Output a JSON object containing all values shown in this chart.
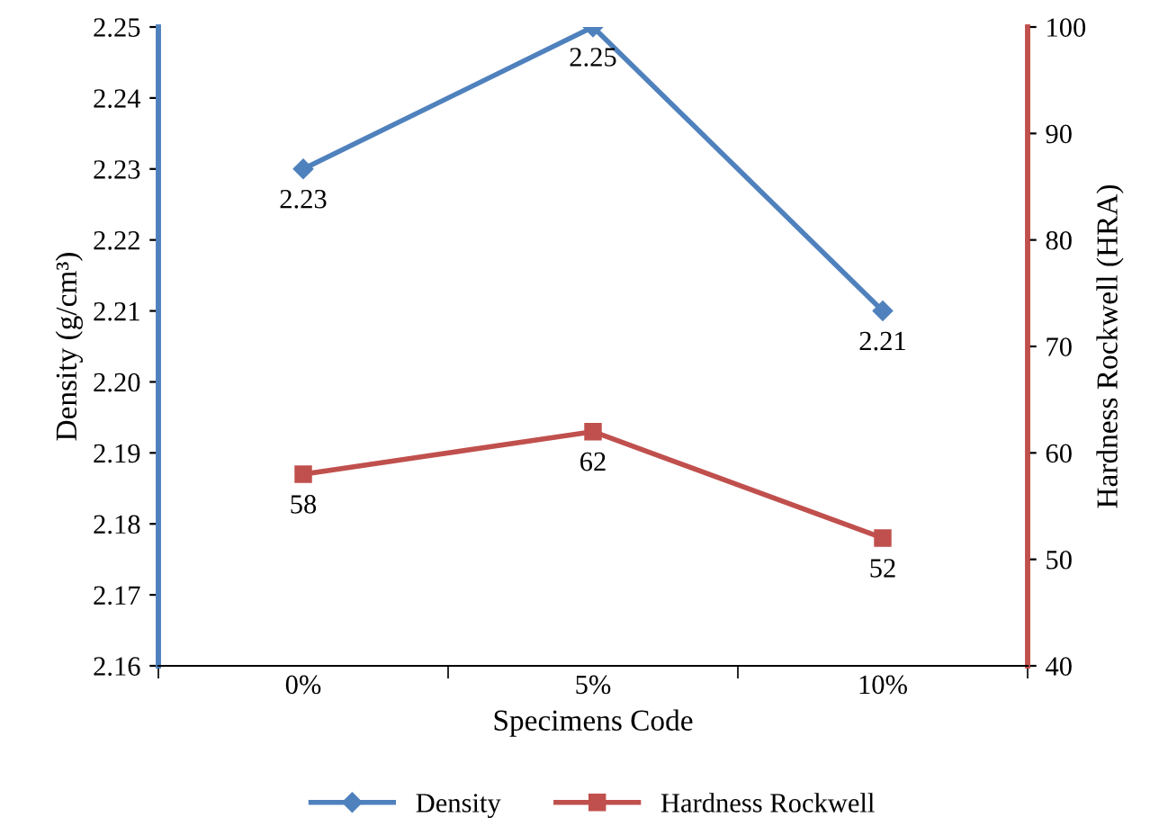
{
  "chart_data": {
    "type": "line",
    "xlabel": "Specimens Code",
    "ylabel": "Density (g/cm³)",
    "y2label": "Hardness Rockwell (HRA)",
    "categories": [
      "0%",
      "5%",
      "10%"
    ],
    "series": [
      {
        "name": "Density",
        "color": "#4f81bd",
        "values": [
          2.23,
          2.25,
          2.21
        ],
        "marker": "diamond"
      },
      {
        "name": "Hardness Rockwell",
        "color": "#c0504d",
        "values": [
          58,
          62,
          52
        ],
        "marker": "square",
        "axis": "y2"
      }
    ],
    "ylim": [
      2.16,
      2.25
    ],
    "yticks": [
      {
        "value": 2.16,
        "label": "2.16"
      },
      {
        "value": 2.17,
        "label": "2.17"
      },
      {
        "value": 2.18,
        "label": "2.18"
      },
      {
        "value": 2.19,
        "label": "2.19"
      },
      {
        "value": 2.2,
        "label": "2.20"
      },
      {
        "value": 2.21,
        "label": "2.21"
      },
      {
        "value": 2.22,
        "label": "2.22"
      },
      {
        "value": 2.23,
        "label": "2.23"
      },
      {
        "value": 2.24,
        "label": "2.24"
      },
      {
        "value": 2.25,
        "label": "2.25"
      }
    ],
    "y2lim": [
      40,
      100
    ],
    "y2ticks": [
      40,
      50,
      60,
      70,
      80,
      90,
      100
    ],
    "data_labels": true,
    "grid": false,
    "legend": "bottom",
    "line_style": "solid"
  }
}
